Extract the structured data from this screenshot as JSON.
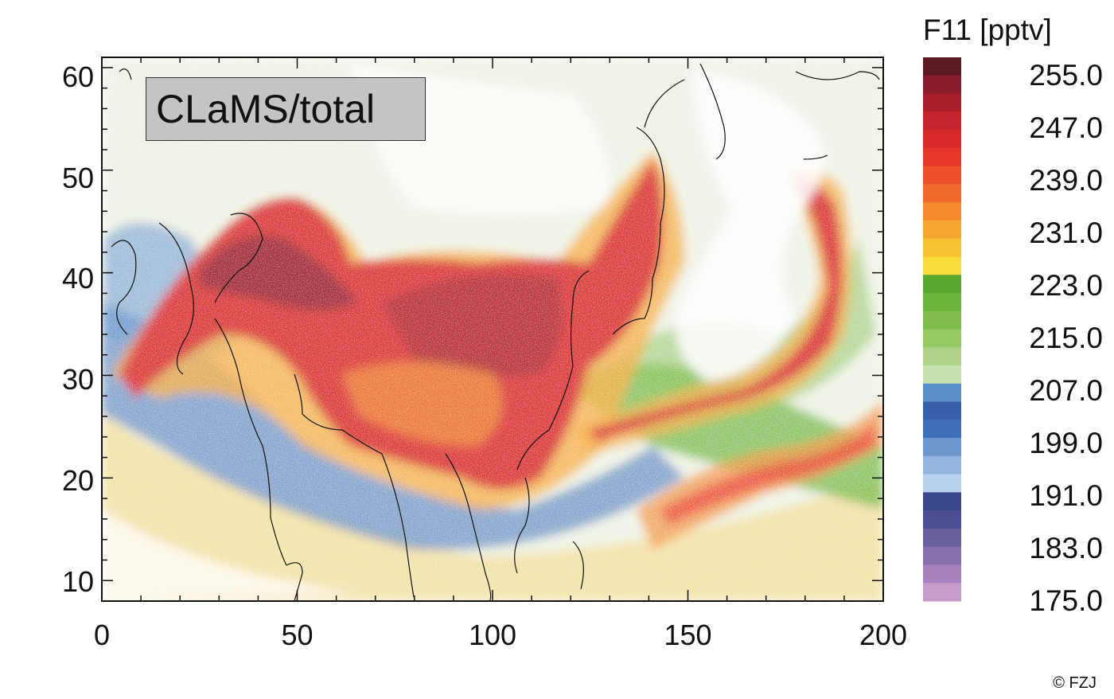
{
  "panel_label": "CLaMS/total",
  "colorbar": {
    "title": "F11 [pptv]",
    "min": 175.0,
    "max": 255.0,
    "ticks": [
      "255.0",
      "247.0",
      "239.0",
      "231.0",
      "223.0",
      "215.0",
      "207.0",
      "199.0",
      "191.0",
      "183.0",
      "175.0"
    ],
    "colors": [
      "#5c1a22",
      "#8a1d2a",
      "#a81f2b",
      "#c4242c",
      "#d82a2a",
      "#e8372a",
      "#ec4f2a",
      "#ef6a2c",
      "#f38a2e",
      "#f6a632",
      "#f9c232",
      "#f8dc3a",
      "#5aa82e",
      "#6cb33a",
      "#80bd4c",
      "#96c864",
      "#aed388",
      "#c7e0b0",
      "#5b8fcc",
      "#3a5faa",
      "#3f6fb8",
      "#6e96cc",
      "#93b6df",
      "#b6d2ee",
      "#38478a",
      "#4d4f92",
      "#6a5f9e",
      "#8670ac",
      "#a582bb",
      "#c89cc9"
    ]
  },
  "axes": {
    "x_ticks": [
      "0",
      "50",
      "100",
      "150",
      "200"
    ],
    "y_ticks": [
      "10",
      "20",
      "30",
      "40",
      "50",
      "60"
    ],
    "xlim": [
      0,
      200
    ],
    "ylim": [
      8,
      61
    ]
  },
  "credit": "© FZJ"
}
